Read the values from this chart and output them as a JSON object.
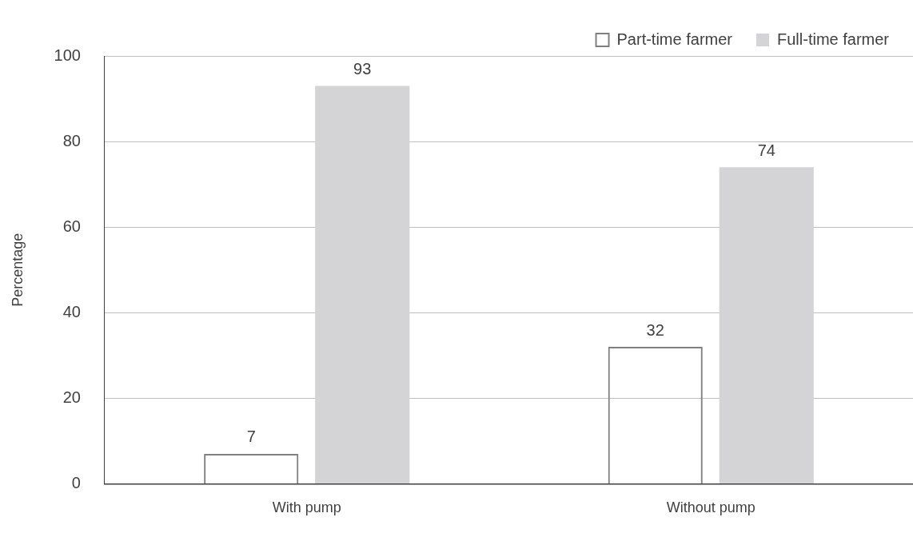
{
  "chart_data": {
    "type": "bar",
    "ylabel": "Percentage",
    "categories": [
      "With pump",
      "Without pump"
    ],
    "series": [
      {
        "name": "Part-time farmer",
        "color": "#808080",
        "values": [
          7,
          32
        ]
      },
      {
        "name": "Full-time farmer",
        "color": "#d4d4d6",
        "values": [
          93,
          74
        ]
      }
    ],
    "ylim": [
      0,
      100
    ],
    "yticks": [
      0,
      20,
      40,
      60,
      80,
      100
    ],
    "grid": "y",
    "legend": "top right",
    "data_labels": true
  }
}
